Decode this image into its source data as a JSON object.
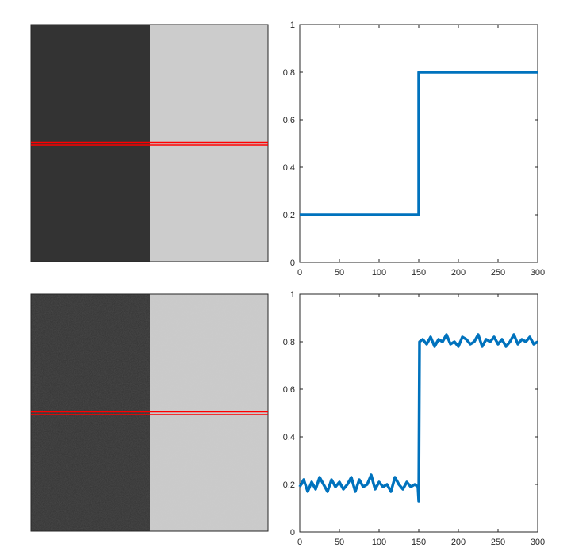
{
  "chart_data": [
    {
      "type": "image",
      "description_visible": "grayscale image: left half dark, right half light, red line marks sampled row",
      "left_gray": "#333333",
      "right_gray": "#cccccc",
      "noise": false,
      "line_color": "#ff0000"
    },
    {
      "type": "line",
      "xlim": [
        0,
        300
      ],
      "ylim": [
        0,
        1
      ],
      "xticks": [
        "0",
        "50",
        "100",
        "150",
        "200",
        "250",
        "300"
      ],
      "yticks": [
        "0",
        "0.2",
        "0.4",
        "0.6",
        "0.8",
        "1"
      ],
      "series": [
        {
          "color": "#0072bd",
          "x": [
            0,
            150,
            150,
            300
          ],
          "y": [
            0.2,
            0.2,
            0.8,
            0.8
          ]
        }
      ]
    },
    {
      "type": "image",
      "left_gray": "#333333",
      "right_gray": "#cccccc",
      "noise": true,
      "line_color": "#ff0000"
    },
    {
      "type": "line",
      "xlim": [
        0,
        300
      ],
      "ylim": [
        0,
        1
      ],
      "xticks": [
        "0",
        "50",
        "100",
        "150",
        "200",
        "250",
        "300"
      ],
      "yticks": [
        "0",
        "0.2",
        "0.4",
        "0.6",
        "0.8",
        "1"
      ],
      "series": [
        {
          "color": "#0072bd",
          "x": [
            0,
            5,
            10,
            15,
            20,
            25,
            30,
            35,
            40,
            45,
            50,
            55,
            60,
            65,
            70,
            75,
            80,
            85,
            90,
            95,
            100,
            105,
            110,
            115,
            120,
            125,
            130,
            135,
            140,
            145,
            149,
            150,
            151,
            155,
            160,
            165,
            170,
            175,
            180,
            185,
            190,
            195,
            200,
            205,
            210,
            215,
            220,
            225,
            230,
            235,
            240,
            245,
            250,
            255,
            260,
            265,
            270,
            275,
            280,
            285,
            290,
            295,
            300
          ],
          "y": [
            0.19,
            0.22,
            0.17,
            0.21,
            0.18,
            0.23,
            0.2,
            0.17,
            0.22,
            0.19,
            0.21,
            0.18,
            0.2,
            0.23,
            0.17,
            0.22,
            0.19,
            0.2,
            0.24,
            0.18,
            0.21,
            0.19,
            0.2,
            0.17,
            0.23,
            0.2,
            0.18,
            0.21,
            0.19,
            0.2,
            0.19,
            0.13,
            0.8,
            0.81,
            0.79,
            0.82,
            0.78,
            0.81,
            0.8,
            0.83,
            0.79,
            0.8,
            0.78,
            0.82,
            0.81,
            0.79,
            0.8,
            0.83,
            0.78,
            0.81,
            0.8,
            0.82,
            0.79,
            0.81,
            0.78,
            0.8,
            0.83,
            0.79,
            0.81,
            0.8,
            0.82,
            0.79,
            0.8
          ]
        }
      ]
    }
  ]
}
